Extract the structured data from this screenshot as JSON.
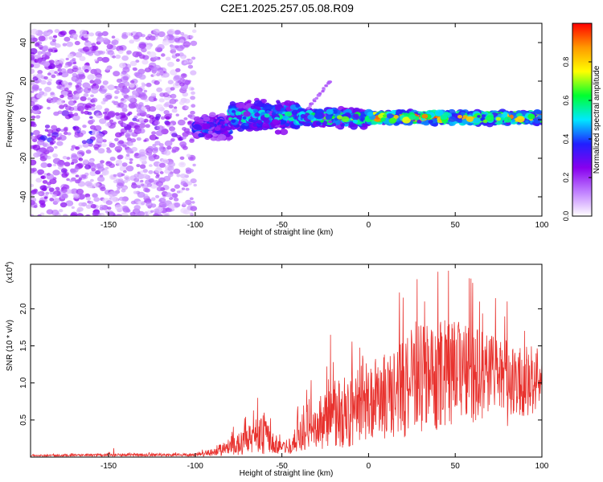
{
  "title": "C2E1.2025.257.05.08.R09",
  "colors": {
    "snr_line": "#e8322e",
    "axes": "#000000",
    "background": "#ffffff"
  },
  "chart_data": [
    {
      "type": "heatmap",
      "name": "spectrogram",
      "xlabel": "Height of straight line (km)",
      "ylabel": "Frequency (Hz)",
      "xlim": [
        -195,
        100
      ],
      "ylim": [
        -50,
        50
      ],
      "xticks": [
        -150,
        -100,
        -50,
        0,
        50,
        100
      ],
      "yticks": [
        -40,
        -20,
        0,
        20,
        40
      ],
      "colorbar": {
        "label": "Normalized spectral amplitude",
        "range": [
          0,
          1
        ],
        "ticks": [
          "0.0",
          "0.2",
          "0.4",
          "0.6",
          "0.8"
        ],
        "colormap": [
          "#ffffff",
          "#c080ff",
          "#8800ee",
          "#2020ff",
          "#00e8ff",
          "#00ff30",
          "#ffff00",
          "#ff9900",
          "#ff0000"
        ]
      },
      "segments": [
        {
          "x_from": -195,
          "x_to": -155,
          "center_hz": -4,
          "spread_hz": 50,
          "amplitude": 0.2,
          "kind": "noise"
        },
        {
          "x_from": -155,
          "x_to": -100,
          "center_hz": -4,
          "spread_hz": 50,
          "amplitude": 0.15,
          "kind": "noise"
        },
        {
          "x_from": -100,
          "x_to": -80,
          "center_hz": -4,
          "spread_hz": 8,
          "amplitude": 0.35,
          "kind": "signal"
        },
        {
          "x_from": -80,
          "x_to": -40,
          "center_hz": 2,
          "spread_hz": 10,
          "amplitude": 0.45,
          "kind": "signal"
        },
        {
          "x_from": -40,
          "x_to": 0,
          "center_hz": 1,
          "spread_hz": 6,
          "amplitude": 0.55,
          "kind": "signal"
        },
        {
          "x_from": 0,
          "x_to": 100,
          "center_hz": 1,
          "spread_hz": 4,
          "amplitude": 0.75,
          "kind": "signal"
        }
      ],
      "annotations": [
        {
          "x_from": -35,
          "x_to": -22,
          "y_from": 6,
          "y_to": 20,
          "note": "faint rising streak"
        }
      ]
    },
    {
      "type": "line",
      "name": "snr",
      "xlabel": "Height of straight line (km)",
      "ylabel": "SNR (10 * v/v)",
      "multiplier_label": "(x10",
      "multiplier_exp": "4",
      "multiplier_close": ")",
      "xlim": [
        -195,
        100
      ],
      "ylim": [
        0,
        2.6
      ],
      "xticks": [
        -150,
        -100,
        -50,
        0,
        50,
        100
      ],
      "yticks": [
        "0.5",
        "1.0",
        "1.5",
        "2.0"
      ],
      "envelope_x": [
        -195,
        -150,
        -100,
        -90,
        -80,
        -70,
        -60,
        -55,
        -50,
        -45,
        -40,
        -30,
        -20,
        -10,
        0,
        10,
        20,
        30,
        40,
        50,
        60,
        70,
        80,
        90,
        100
      ],
      "envelope_mean": [
        0.02,
        0.03,
        0.03,
        0.06,
        0.15,
        0.22,
        0.3,
        0.2,
        0.12,
        0.15,
        0.3,
        0.45,
        0.55,
        0.65,
        0.75,
        0.85,
        0.95,
        1.05,
        1.1,
        1.15,
        1.1,
        1.1,
        1.05,
        1.0,
        1.0
      ],
      "envelope_spread": [
        0.01,
        0.02,
        0.02,
        0.05,
        0.12,
        0.2,
        0.3,
        0.15,
        0.08,
        0.12,
        0.25,
        0.35,
        0.45,
        0.5,
        0.55,
        0.6,
        0.7,
        0.75,
        0.75,
        0.75,
        0.65,
        0.55,
        0.5,
        0.45,
        0.4
      ],
      "peaks": [
        {
          "x": -147,
          "y": 0.12
        },
        {
          "x": -64,
          "y": 0.8
        },
        {
          "x": -22,
          "y": 1.65
        },
        {
          "x": 20,
          "y": 2.15
        },
        {
          "x": 28,
          "y": 2.4
        },
        {
          "x": 40,
          "y": 2.5
        },
        {
          "x": 60,
          "y": 2.35
        },
        {
          "x": 80,
          "y": 2.1
        }
      ]
    }
  ]
}
